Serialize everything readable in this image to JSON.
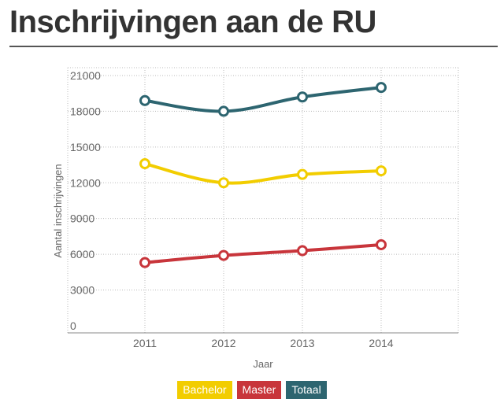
{
  "header": {
    "title": "Inschrijvingen aan de RU"
  },
  "chart_data": {
    "type": "line",
    "title": "Inschrijvingen aan de RU",
    "xlabel": "Jaar",
    "ylabel": "Aantal inschrijvingen",
    "x": [
      "2011",
      "2012",
      "2013",
      "2014"
    ],
    "yticks": [
      0,
      3000,
      6000,
      9000,
      12000,
      15000,
      18000,
      21000
    ],
    "ylim": [
      -600,
      21000
    ],
    "grid": true,
    "legend_position": "bottom",
    "series": [
      {
        "name": "Bachelor",
        "color": "#f2cd00",
        "values": [
          13600,
          12000,
          12700,
          13000
        ]
      },
      {
        "name": "Master",
        "color": "#c8353b",
        "values": [
          5300,
          5900,
          6300,
          6800
        ]
      },
      {
        "name": "Totaal",
        "color": "#2d6570",
        "values": [
          18900,
          18000,
          19200,
          20000
        ]
      }
    ]
  }
}
